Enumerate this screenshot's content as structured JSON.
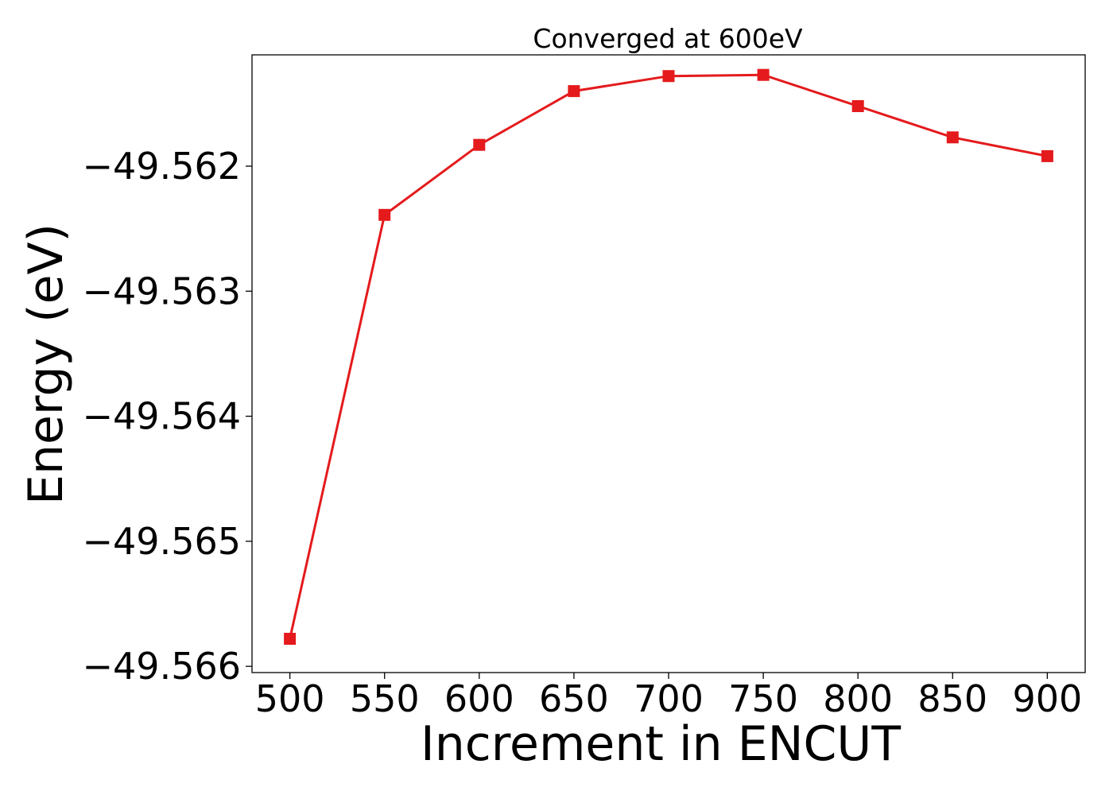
{
  "chart_data": {
    "type": "line",
    "title": "Converged at 600eV",
    "xlabel": "Increment in ENCUT",
    "ylabel": "Energy (eV)",
    "x": [
      500,
      550,
      600,
      650,
      700,
      750,
      800,
      850,
      900
    ],
    "xticks": [
      500,
      550,
      600,
      650,
      700,
      750,
      800,
      850,
      900
    ],
    "xlim": [
      480,
      920
    ],
    "yticks": [
      -49.566,
      -49.565,
      -49.564,
      -49.563,
      -49.562
    ],
    "ytick_labels": [
      "−49.566",
      "−49.565",
      "−49.564",
      "−49.563",
      "−49.562"
    ],
    "ylim": [
      -49.56605,
      -49.56111
    ],
    "grid": false,
    "series": [
      {
        "values": [
          -49.56578,
          -49.56239,
          -49.56183,
          -49.5614,
          -49.56128,
          -49.56127,
          -49.56152,
          -49.56177,
          -49.56192
        ],
        "color": "#e41a1c",
        "marker": "square"
      }
    ]
  }
}
